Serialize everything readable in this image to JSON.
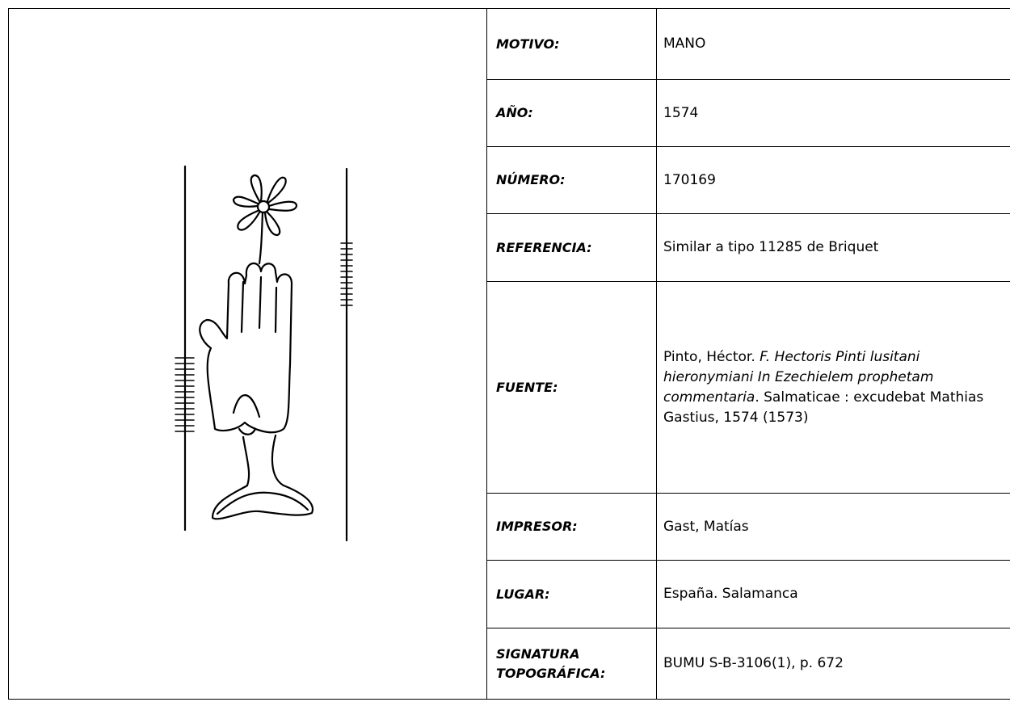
{
  "table": {
    "rows": [
      {
        "label": "MOTIVO:",
        "value": "MANO"
      },
      {
        "label": "AÑO:",
        "value": "1574"
      },
      {
        "label": "NÚMERO:",
        "value": "170169"
      },
      {
        "label": "REFERENCIA:",
        "value": "Similar a tipo 11285 de Briquet"
      },
      {
        "label": "FUENTE:",
        "value": {
          "author": "Pinto, Héctor.",
          "title": "F. Hectoris Pinti lusitani hieronymiani In Ezechielem prophetam commentaria",
          "imprint": ".  Salmaticae : excudebat Mathias Gastius, 1574 (1573)"
        }
      },
      {
        "label": "IMPRESOR:",
        "value": "Gast, Matías"
      },
      {
        "label": "LUGAR:",
        "value": "España. Salamanca"
      },
      {
        "label": "SIGNATURA TOPOGRÁFICA:",
        "value": "BUMU S-B-3106(1), p. 672"
      }
    ]
  }
}
